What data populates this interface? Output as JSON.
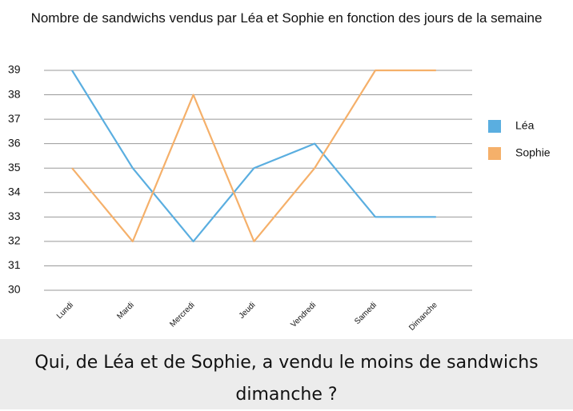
{
  "chart_data": {
    "type": "line",
    "title": "Nombre de sandwichs vendus par Léa et Sophie en fonction des jours de la semaine",
    "categories": [
      "Lundi",
      "Mardi",
      "Mercredi",
      "Jeudi",
      "Vendredi",
      "Samedi",
      "Dimanche"
    ],
    "series": [
      {
        "name": "Léa",
        "color": "#5aaee0",
        "values": [
          39,
          35,
          32,
          35,
          36,
          33,
          33
        ]
      },
      {
        "name": "Sophie",
        "color": "#f5b06a",
        "values": [
          35,
          32,
          38,
          32,
          35,
          39,
          39
        ]
      }
    ],
    "ylim": [
      30,
      39
    ],
    "yticks": [
      30,
      31,
      32,
      33,
      34,
      35,
      36,
      37,
      38,
      39
    ],
    "grid": true,
    "legend": "right"
  },
  "question": "Qui, de Léa et de Sophie, a vendu le moins de sandwichs dimanche ?"
}
